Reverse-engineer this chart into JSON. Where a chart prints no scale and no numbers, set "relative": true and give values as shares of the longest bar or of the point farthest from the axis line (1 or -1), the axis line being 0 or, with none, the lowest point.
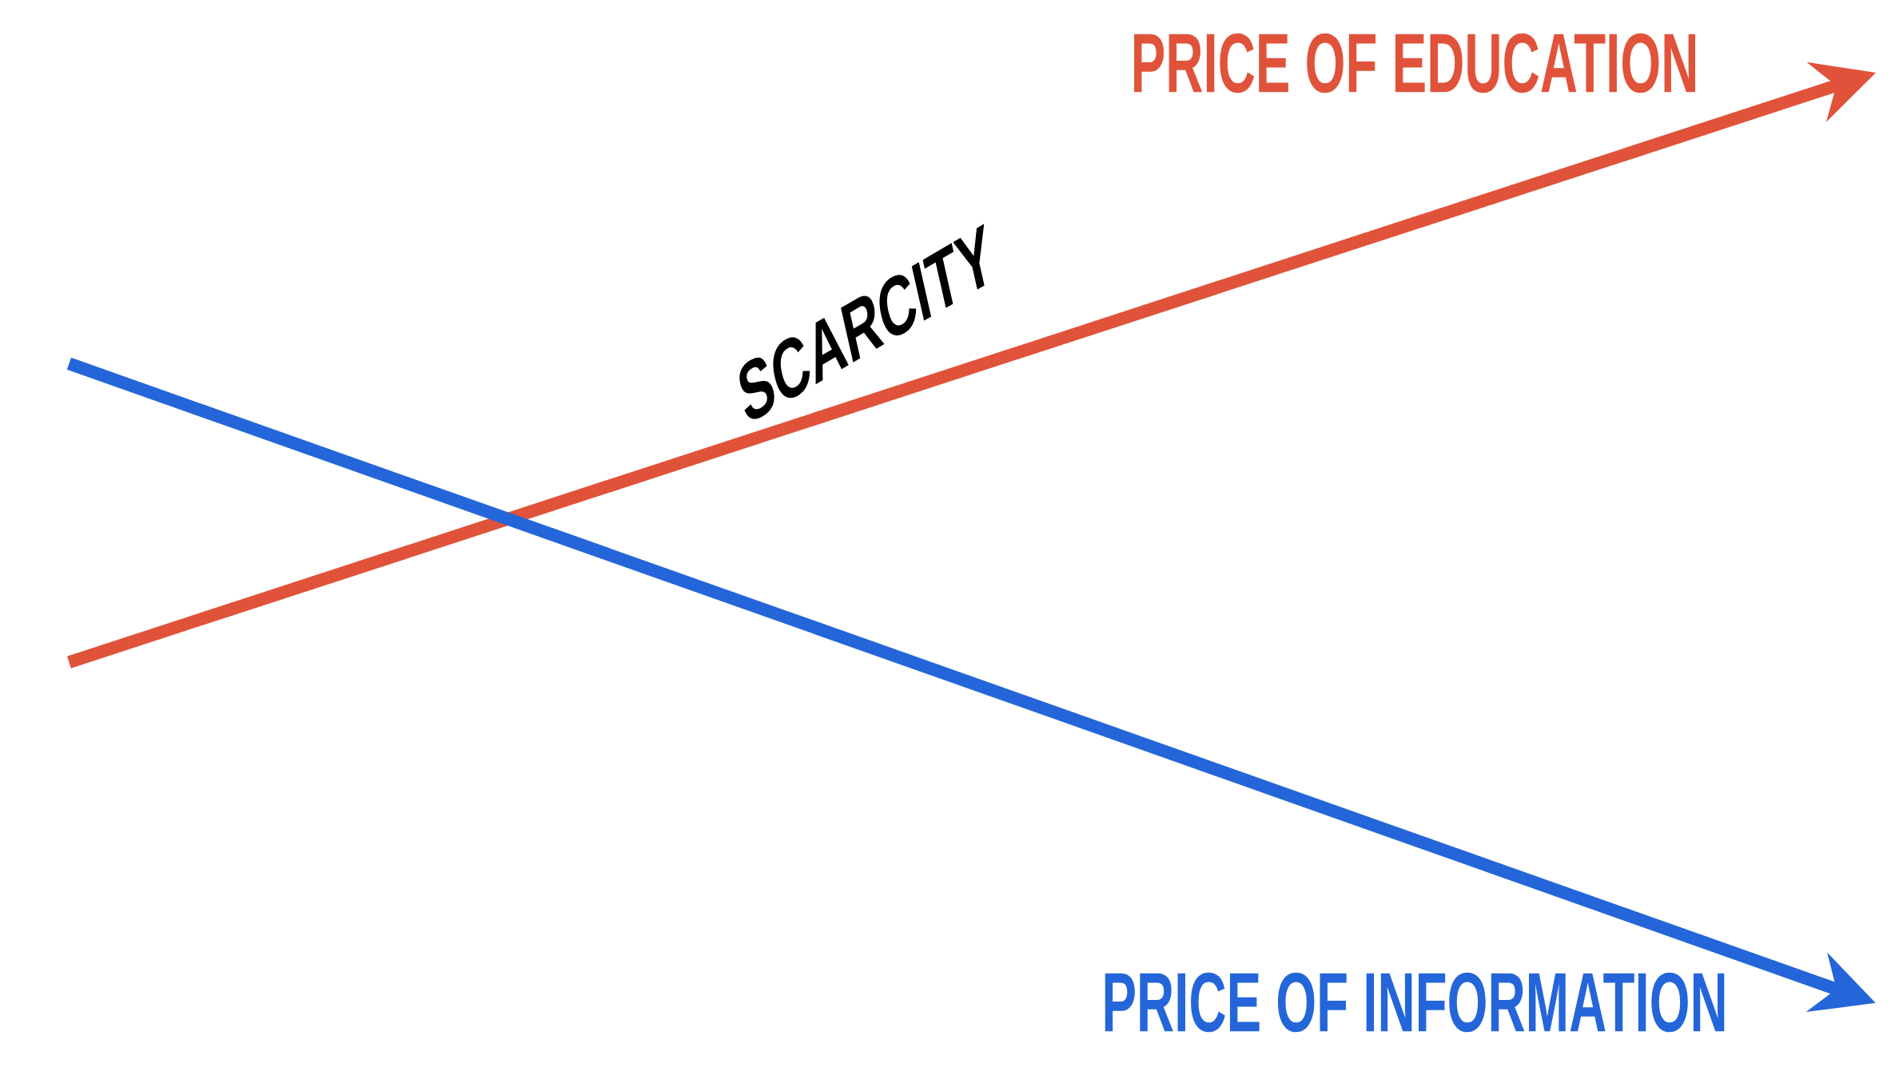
{
  "chart_data": {
    "type": "line",
    "relative": true,
    "categories": [
      null,
      null
    ],
    "series": [
      {
        "name": "PRICE OF EDUCATION",
        "color": "#e0533a",
        "values": [
          0.363,
          1
        ]
      },
      {
        "name": "PRICE OF INFORMATION",
        "color": "#2466d9",
        "values": [
          0.691,
          0
        ]
      }
    ],
    "annotations": [
      "SCARCITY"
    ],
    "legend": "right"
  }
}
